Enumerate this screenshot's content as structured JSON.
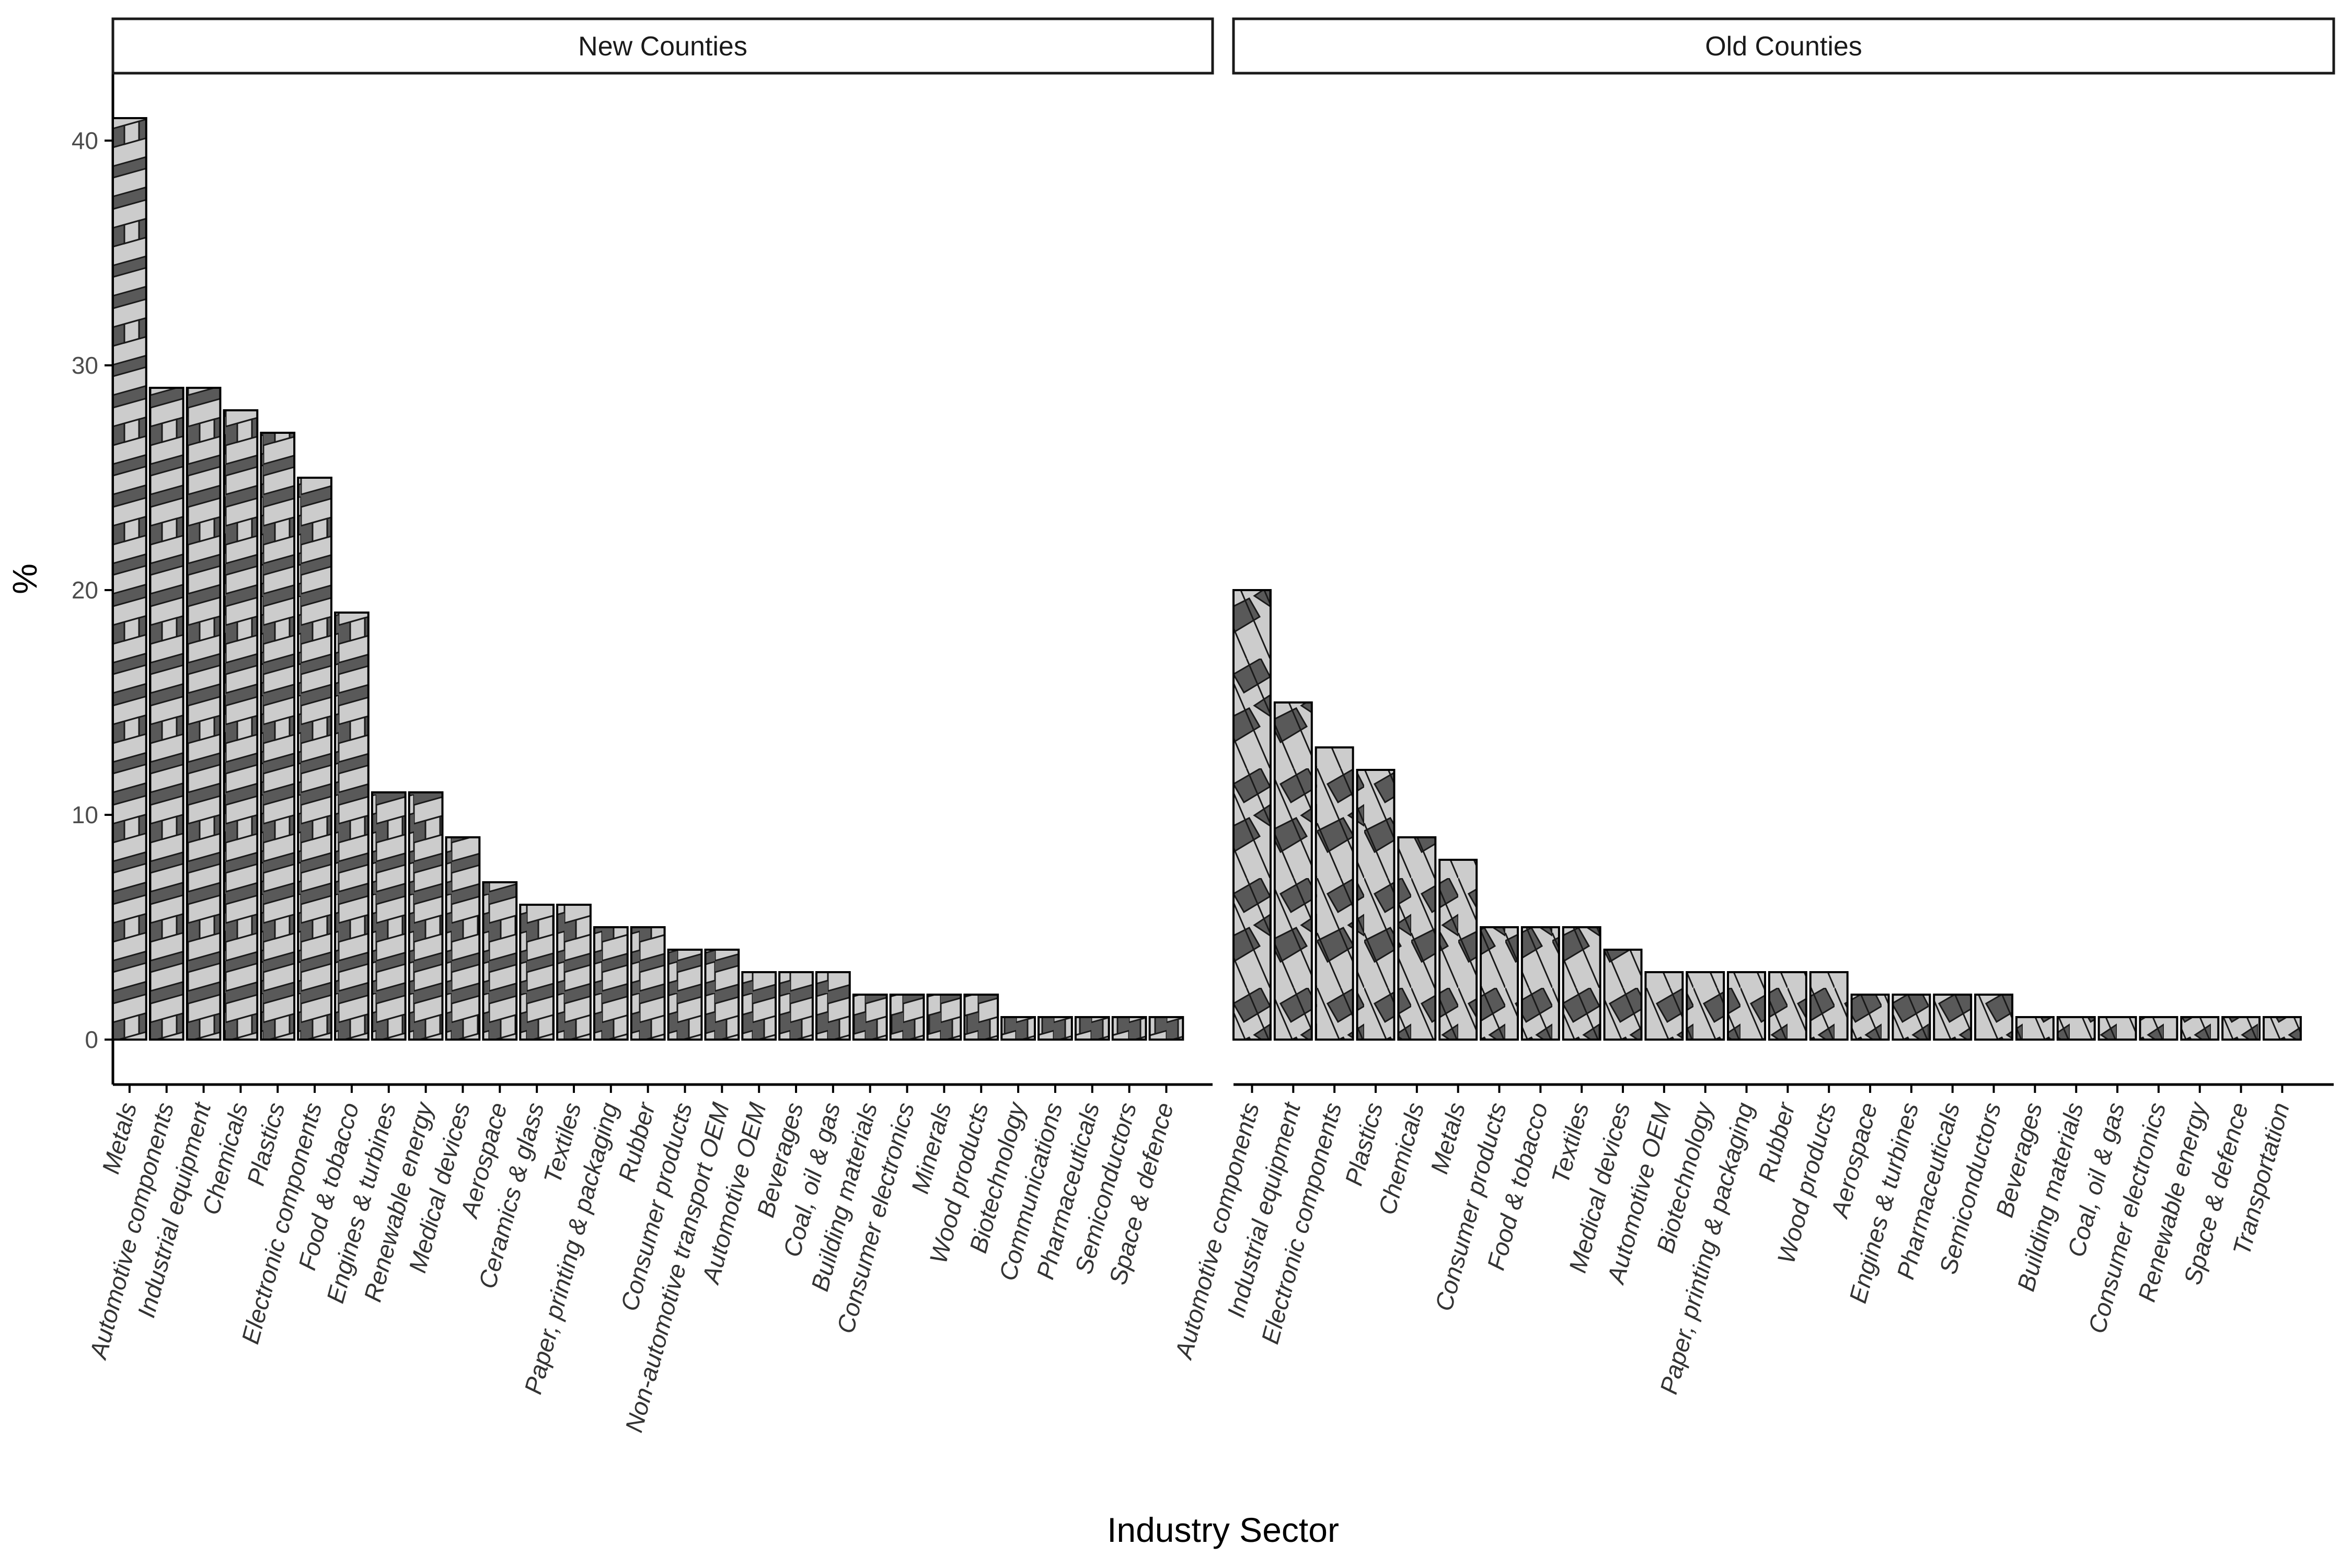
{
  "chart_data": {
    "type": "bar",
    "xlabel": "Industry Sector",
    "ylabel": "%",
    "ylim": [
      -2,
      43
    ],
    "yticks": [
      0,
      10,
      20,
      30,
      40
    ],
    "grid": false,
    "legend": "none",
    "panels": [
      {
        "name": "New Counties",
        "pattern": "zigzag",
        "categories": [
          "Metals",
          "Automotive components",
          "Industrial equipment",
          "Chemicals",
          "Plastics",
          "Electronic components",
          "Food & tobacco",
          "Engines & turbines",
          "Renewable energy",
          "Medical devices",
          "Aerospace",
          "Ceramics & glass",
          "Textiles",
          "Paper, printing & packaging",
          "Rubber",
          "Consumer products",
          "Non-automotive transport OEM",
          "Automotive OEM",
          "Beverages",
          "Coal, oil & gas",
          "Building materials",
          "Consumer electronics",
          "Minerals",
          "Wood products",
          "Biotechnology",
          "Communications",
          "Pharmaceuticals",
          "Semiconductors",
          "Space & defence"
        ],
        "values": [
          41,
          29,
          29,
          28,
          27,
          25,
          19,
          11,
          11,
          9,
          7,
          6,
          6,
          5,
          5,
          4,
          4,
          3,
          3,
          3,
          2,
          2,
          2,
          2,
          1,
          1,
          1,
          1,
          1
        ]
      },
      {
        "name": "Old Counties",
        "pattern": "weave",
        "categories": [
          "Automotive components",
          "Industrial equipment",
          "Electronic components",
          "Plastics",
          "Chemicals",
          "Metals",
          "Consumer products",
          "Food & tobacco",
          "Textiles",
          "Medical devices",
          "Automotive OEM",
          "Biotechnology",
          "Paper, printing & packaging",
          "Rubber",
          "Wood products",
          "Aerospace",
          "Engines & turbines",
          "Pharmaceuticals",
          "Semiconductors",
          "Beverages",
          "Building materials",
          "Coal, oil & gas",
          "Consumer electronics",
          "Renewable energy",
          "Space & defence",
          "Transportation"
        ],
        "values": [
          20,
          15,
          13,
          12,
          9,
          8,
          5,
          5,
          5,
          4,
          3,
          3,
          3,
          3,
          3,
          2,
          2,
          2,
          2,
          1,
          1,
          1,
          1,
          1,
          1,
          1
        ]
      }
    ],
    "colors": {
      "bar_light": "#cccccc",
      "bar_dark": "#595959",
      "outline": "#000000",
      "axis": "#000000"
    }
  }
}
